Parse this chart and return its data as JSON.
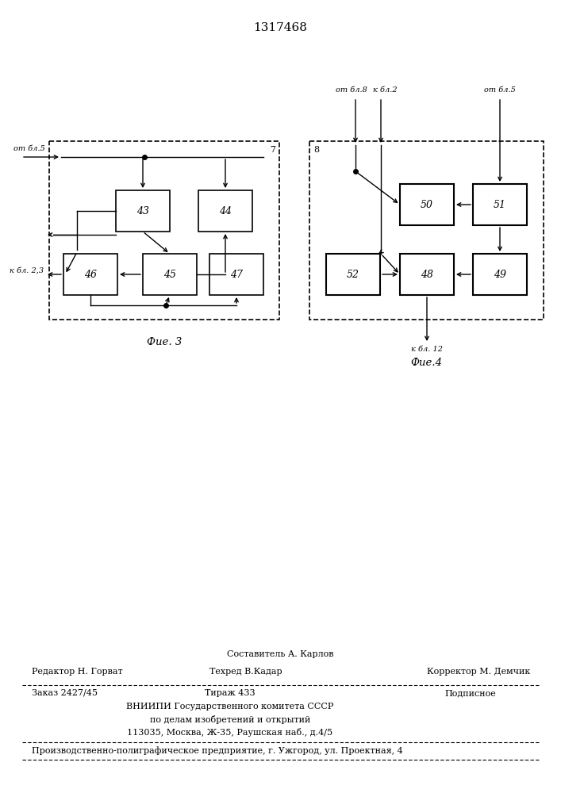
{
  "title": "1317468",
  "bg_color": "#ffffff",
  "fig3": {
    "label": "7",
    "caption": "Фие. 3",
    "input_label": "от бл.5",
    "output_label": "к бл. 2,3"
  },
  "fig4": {
    "label": "8",
    "caption": "Фие.4",
    "label_otbl8": "от бл.8",
    "label_kbl2": "к бл.2",
    "label_otbl5": "от бл.5",
    "label_kbl12": "к бл. 12"
  },
  "footer": {
    "line1_center": "Составитель А. Карлов",
    "line2_left": "Редактор Н. Горват",
    "line2_center": "Техред В.Кадар",
    "line2_right": "Корректор М. Демчик",
    "line3_left": "Заказ 2427/45",
    "line3_center": "Тираж 433",
    "line3_right": "Подписное",
    "line4": "ВНИИПИ Государственного комитета СССР",
    "line5": "по делам изобретений и открытий",
    "line6": "113035, Москва, Ж-35, Раушская наб., д.4/5",
    "line7": "Производственно-полиграфическое предприятие, г. Ужгород, ул. Проектная, 4"
  }
}
